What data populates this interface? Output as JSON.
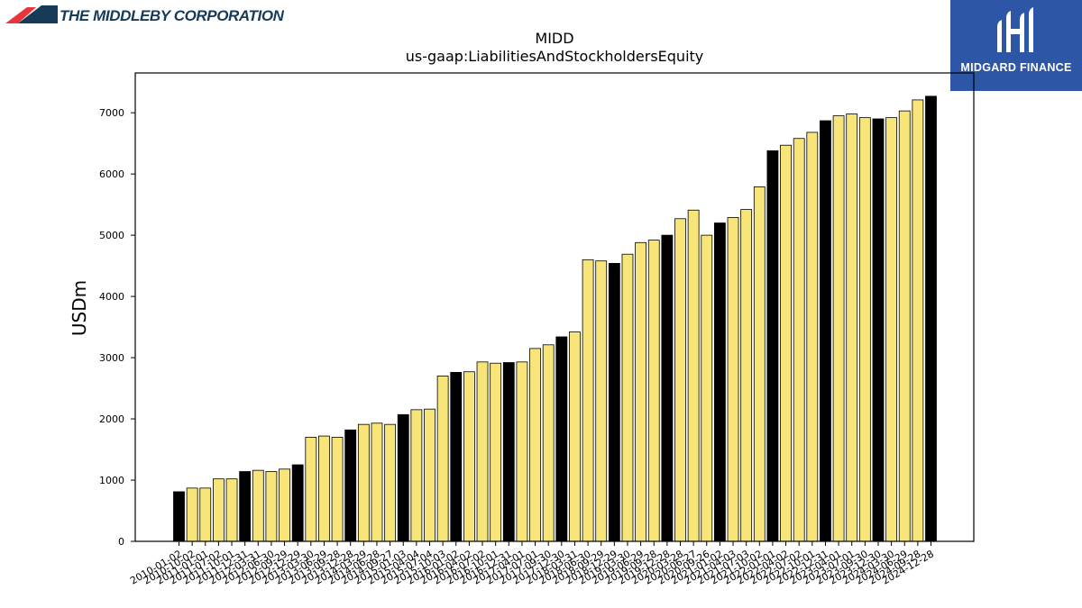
{
  "header": {
    "company_name": "THE MIDDLEBY CORPORATION",
    "brand_name": "MIDGARD FINANCE",
    "brand_color": "#2e56a6",
    "logo_icon": "middleby-logo-icon",
    "brand_icon": "midgard-logo-icon"
  },
  "chart_data": {
    "type": "bar",
    "title": "MIDD",
    "subtitle": "us-gaap:LiabilitiesAndStockholdersEquity",
    "xlabel": "",
    "ylabel": "USDm",
    "ylim": [
      0,
      7650
    ],
    "yticks": [
      0,
      1000,
      2000,
      3000,
      4000,
      5000,
      6000,
      7000
    ],
    "grid": false,
    "colors": {
      "annual": "#000000",
      "quarterly": "#f8e57a"
    },
    "categories": [
      "2010-01-02",
      "2010-10-02",
      "2011-01-01",
      "2011-07-02",
      "2011-10-01",
      "2011-12-31",
      "2012-03-31",
      "2012-06-30",
      "2012-09-29",
      "2012-12-29",
      "2013-03-30",
      "2013-06-29",
      "2013-09-28",
      "2013-12-28",
      "2014-03-29",
      "2014-06-28",
      "2014-09-27",
      "2015-01-03",
      "2015-04-04",
      "2015-07-04",
      "2015-10-03",
      "2016-01-02",
      "2016-04-02",
      "2016-07-02",
      "2016-10-01",
      "2016-12-31",
      "2017-04-01",
      "2017-07-01",
      "2017-09-30",
      "2017-12-30",
      "2018-03-31",
      "2018-06-30",
      "2018-09-29",
      "2018-12-29",
      "2019-03-30",
      "2019-06-29",
      "2019-09-28",
      "2019-12-28",
      "2020-03-28",
      "2020-06-27",
      "2020-09-26",
      "2021-01-02",
      "2021-04-03",
      "2021-07-03",
      "2021-10-02",
      "2022-01-01",
      "2022-04-02",
      "2022-07-02",
      "2022-10-01",
      "2022-12-31",
      "2023-04-01",
      "2023-07-01",
      "2023-09-30",
      "2023-12-30",
      "2024-03-30",
      "2024-06-29",
      "2024-09-28",
      "2024-12-28"
    ],
    "values": [
      810,
      870,
      870,
      1020,
      1020,
      1140,
      1160,
      1140,
      1180,
      1250,
      1700,
      1720,
      1700,
      1820,
      1910,
      1930,
      1910,
      2070,
      2150,
      2160,
      2700,
      2760,
      2770,
      2930,
      2910,
      2920,
      2930,
      3150,
      3210,
      3340,
      3420,
      4600,
      4580,
      4540,
      4690,
      4880,
      4920,
      5000,
      5270,
      5410,
      5000,
      5200,
      5290,
      5420,
      5790,
      6380,
      6470,
      6580,
      6680,
      6870,
      6950,
      6980,
      6920,
      6900,
      6920,
      7030,
      7210,
      7270
    ],
    "annual": [
      true,
      false,
      false,
      false,
      false,
      true,
      false,
      false,
      false,
      true,
      false,
      false,
      false,
      true,
      false,
      false,
      false,
      true,
      false,
      false,
      false,
      true,
      false,
      false,
      false,
      true,
      false,
      false,
      false,
      true,
      false,
      false,
      false,
      true,
      false,
      false,
      false,
      true,
      false,
      false,
      false,
      true,
      false,
      false,
      false,
      true,
      false,
      false,
      false,
      true,
      false,
      false,
      false,
      true,
      false,
      false,
      false,
      true
    ]
  }
}
